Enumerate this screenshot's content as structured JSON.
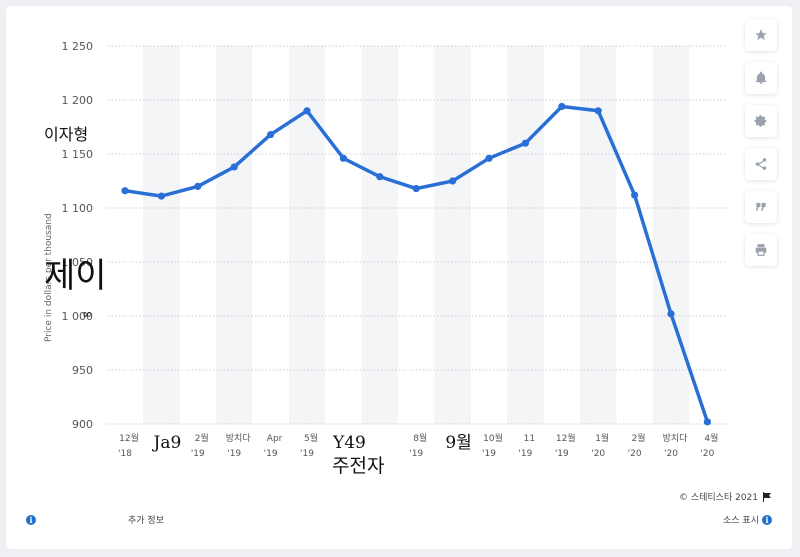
{
  "chart_data": {
    "type": "line",
    "ylabel": "Price in dollars per thousand",
    "ylim": [
      900,
      1250
    ],
    "yticks": [
      {
        "value": 1250,
        "label": "1 250"
      },
      {
        "value": 1200,
        "label": "1 200"
      },
      {
        "value": 1150,
        "label": "1 150"
      },
      {
        "value": 1100,
        "label": "1 100"
      },
      {
        "value": 1050,
        "label": "1 050"
      },
      {
        "value": 1000,
        "label": "1 000"
      },
      {
        "value": 950,
        "label": "950"
      },
      {
        "value": 900,
        "label": "900"
      }
    ],
    "categories": [
      {
        "top": "12월",
        "bottom": "'18"
      },
      {
        "top": "Ja9",
        "bottom": ""
      },
      {
        "top": "2월",
        "bottom": "'19"
      },
      {
        "top": "방치다",
        "bottom": "'19"
      },
      {
        "top": "Apr",
        "bottom": "'19"
      },
      {
        "top": "5월",
        "bottom": "'19"
      },
      {
        "top": "Y49",
        "bottom": ""
      },
      {
        "top": "",
        "bottom": ""
      },
      {
        "top": "8월",
        "bottom": "'19"
      },
      {
        "top": "9월",
        "bottom": ""
      },
      {
        "top": "10월",
        "bottom": "'19"
      },
      {
        "top": "11",
        "bottom": "'19"
      },
      {
        "top": "12월",
        "bottom": "'19"
      },
      {
        "top": "1월",
        "bottom": "'20"
      },
      {
        "top": "2월",
        "bottom": "'20"
      },
      {
        "top": "방치다",
        "bottom": "'20"
      },
      {
        "top": "4월",
        "bottom": "'20"
      }
    ],
    "values": [
      1116,
      1111,
      1120,
      1138,
      1168,
      1190,
      1146,
      1129,
      1118,
      1125,
      1146,
      1160,
      1194,
      1190,
      1112,
      1002,
      902
    ],
    "series_color": "#2a6fd6",
    "grid": true
  },
  "overlays": {
    "ylabel_fragment": "이자형",
    "ylabel_big": "제이",
    "ylabel_glyph": "∞",
    "xlabel_extra": "주전자"
  },
  "footer": {
    "copyright": "©  스테티스타 2021",
    "more_info": "추가 정보",
    "source": "소스 표시",
    "info_icon": "i"
  },
  "toolbar": {
    "icons": [
      "star-icon",
      "bell-icon",
      "gear-icon",
      "share-icon",
      "quote-icon",
      "print-icon"
    ]
  }
}
